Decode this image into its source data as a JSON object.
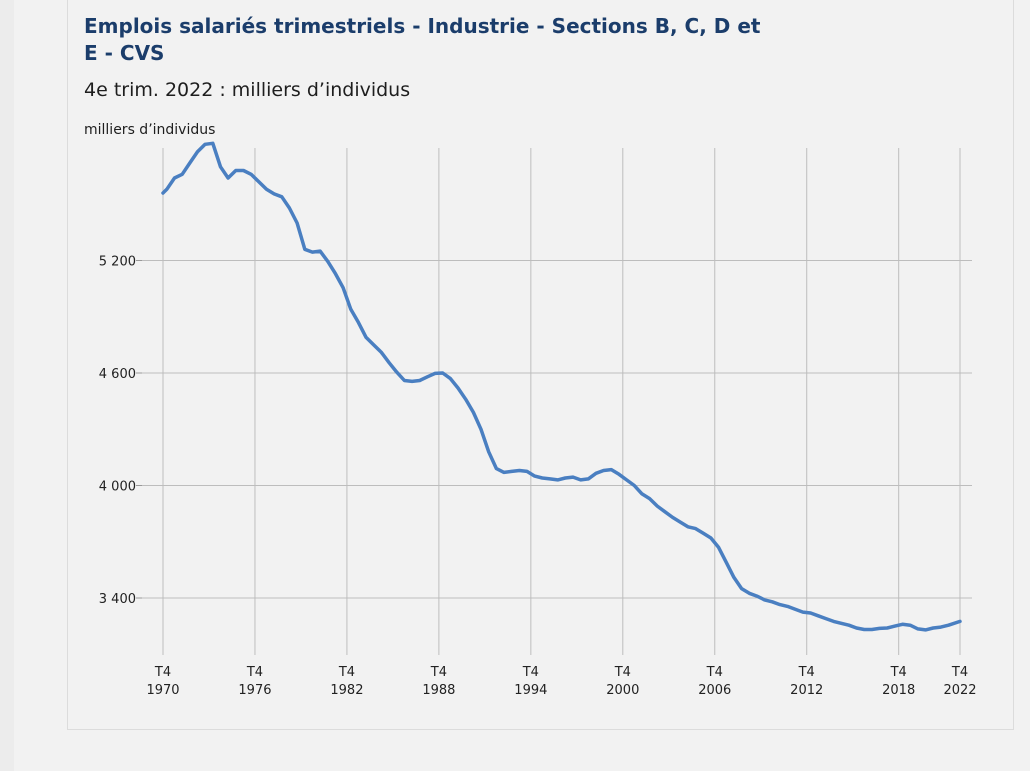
{
  "header": {
    "title": "Emplois salariés trimestriels - Industrie - Sections B, C, D et E - CVS",
    "subtitle": "4e trim. 2022 : milliers d’individus"
  },
  "chart_data": {
    "type": "line",
    "title": "Emplois salariés trimestriels - Industrie - Sections B, C, D et E - CVS",
    "subtitle": "4e trim. 2022 : milliers d’individus",
    "ylabel": "milliers d’individus",
    "xlabel": "",
    "ylim": [
      3190,
      5800
    ],
    "xlim": [
      1970.75,
      2022.75
    ],
    "grid": true,
    "y_ticks": [
      3400,
      4000,
      4600,
      5200
    ],
    "y_tick_labels": [
      "3 400",
      "4 000",
      "4 600",
      "5 200"
    ],
    "x_ticks": [
      1970.75,
      1976.75,
      1982.75,
      1988.75,
      1994.75,
      2000.75,
      2006.75,
      2012.75,
      2018.75,
      2022.75
    ],
    "x_tick_labels": [
      [
        "T4",
        "1970"
      ],
      [
        "T4",
        "1976"
      ],
      [
        "T4",
        "1982"
      ],
      [
        "T4",
        "1988"
      ],
      [
        "T4",
        "1994"
      ],
      [
        "T4",
        "2000"
      ],
      [
        "T4",
        "2006"
      ],
      [
        "T4",
        "2012"
      ],
      [
        "T4",
        "2018"
      ],
      [
        "T4",
        "2022"
      ]
    ],
    "color": "#4a7fc1",
    "series": [
      {
        "x": [
          1970.75,
          1971.0,
          1971.5,
          1972.0,
          1972.5,
          1973.0,
          1973.5,
          1974.0,
          1974.5,
          1975.0,
          1975.5,
          1976.0,
          1976.5,
          1977.0,
          1977.5,
          1978.0,
          1978.5,
          1979.0,
          1979.5,
          1980.0,
          1980.5,
          1981.0,
          1981.5,
          1982.0,
          1982.5,
          1983.0,
          1983.5,
          1984.0,
          1984.5,
          1985.0,
          1985.5,
          1986.0,
          1986.5,
          1987.0,
          1987.5,
          1988.0,
          1988.5,
          1989.0,
          1989.5,
          1990.0,
          1990.5,
          1991.0,
          1991.5,
          1992.0,
          1992.5,
          1993.0,
          1993.5,
          1994.0,
          1994.5,
          1995.0,
          1995.5,
          1996.0,
          1996.5,
          1997.0,
          1997.5,
          1998.0,
          1998.5,
          1999.0,
          1999.5,
          2000.0,
          2000.5,
          2001.0,
          2001.5,
          2002.0,
          2002.5,
          2003.0,
          2003.5,
          2004.0,
          2004.5,
          2005.0,
          2005.5,
          2006.0,
          2006.5,
          2007.0,
          2007.5,
          2008.0,
          2008.5,
          2009.0,
          2009.5,
          2010.0,
          2010.5,
          2011.0,
          2011.5,
          2012.0,
          2012.5,
          2013.0,
          2013.5,
          2014.0,
          2014.5,
          2015.0,
          2015.5,
          2016.0,
          2016.5,
          2017.0,
          2017.5,
          2018.0,
          2018.5,
          2019.0,
          2019.5,
          2020.0,
          2020.5,
          2021.0,
          2021.5,
          2022.0,
          2022.75
        ],
        "y": [
          5560,
          5580,
          5640,
          5660,
          5720,
          5780,
          5820,
          5825,
          5700,
          5640,
          5680,
          5680,
          5660,
          5620,
          5580,
          5555,
          5540,
          5480,
          5400,
          5260,
          5245,
          5250,
          5195,
          5130,
          5055,
          4940,
          4870,
          4790,
          4750,
          4710,
          4655,
          4605,
          4560,
          4555,
          4560,
          4580,
          4598,
          4600,
          4570,
          4520,
          4460,
          4390,
          4300,
          4180,
          4090,
          4070,
          4075,
          4080,
          4075,
          4050,
          4040,
          4035,
          4030,
          4040,
          4045,
          4030,
          4035,
          4065,
          4080,
          4085,
          4060,
          4030,
          4000,
          3955,
          3930,
          3890,
          3860,
          3830,
          3805,
          3780,
          3770,
          3745,
          3720,
          3670,
          3590,
          3510,
          3450,
          3425,
          3410,
          3390,
          3380,
          3365,
          3355,
          3340,
          3325,
          3320,
          3305,
          3290,
          3275,
          3265,
          3255,
          3240,
          3232,
          3232,
          3238,
          3240,
          3250,
          3260,
          3255,
          3235,
          3230,
          3240,
          3245,
          3255,
          3275
        ]
      }
    ]
  }
}
